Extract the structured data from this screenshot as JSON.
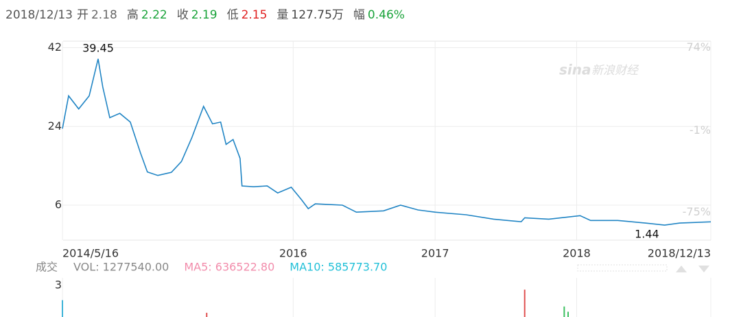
{
  "header": {
    "date": "2018/12/13",
    "items": [
      {
        "label": "开",
        "value": "2.18",
        "color": "#666666"
      },
      {
        "label": "高",
        "value": "2.22",
        "color": "#1aa33a"
      },
      {
        "label": "收",
        "value": "2.19",
        "color": "#1aa33a"
      },
      {
        "label": "低",
        "value": "2.15",
        "color": "#e02020"
      },
      {
        "label": "量",
        "value": "127.75万",
        "color": "#444444"
      },
      {
        "label": "幅",
        "value": "0.46%",
        "color": "#1aa33a"
      }
    ]
  },
  "watermark": {
    "logo": "sina",
    "text": "新浪财经"
  },
  "chart_data": [
    {
      "type": "line",
      "x": [
        "2014-05-16",
        "2014-06-01",
        "2014-06-27",
        "2014-07-24",
        "2014-08-16",
        "2014-08-28",
        "2014-09-15",
        "2014-10-11",
        "2014-11-07",
        "2014-12-03",
        "2014-12-21",
        "2015-01-17",
        "2015-02-21",
        "2015-03-19",
        "2015-04-15",
        "2015-05-15",
        "2015-06-07",
        "2015-06-28",
        "2015-07-12",
        "2015-07-30",
        "2015-08-17",
        "2015-08-22",
        "2015-09-21",
        "2015-10-26",
        "2015-11-22",
        "2015-12-27",
        "2016-01-23",
        "2016-02-09",
        "2016-02-27",
        "2016-05-07",
        "2016-06-12",
        "2016-08-21",
        "2016-10-04",
        "2016-11-18",
        "2017-01-01",
        "2017-03-22",
        "2017-06-01",
        "2017-08-11",
        "2017-08-20",
        "2017-10-21",
        "2018-01-10",
        "2018-02-06",
        "2018-04-17",
        "2018-06-27",
        "2018-08-16",
        "2018-09-24",
        "2018-12-13"
      ],
      "series": [
        {
          "name": "close",
          "color": "#1f84c4",
          "values": [
            23.5,
            31,
            28,
            31,
            39.45,
            33,
            26,
            27,
            25,
            18,
            13.6,
            12.8,
            13.5,
            16,
            21.5,
            28.6,
            24.6,
            25,
            19.9,
            21,
            16.7,
            10.4,
            10.2,
            10.4,
            8.8,
            10.1,
            7.2,
            5.2,
            6.3,
            6.0,
            4.4,
            4.7,
            6.0,
            4.9,
            4.4,
            3.8,
            2.8,
            2.2,
            3.1,
            2.8,
            3.6,
            2.5,
            2.5,
            1.9,
            1.44,
            1.9,
            2.19
          ]
        }
      ],
      "xlim": [
        "2014-05-16",
        "2018-12-13"
      ],
      "xticks": [
        {
          "value": "2014-05-16",
          "label": "2014/5/16"
        },
        {
          "value": "2016-01-01",
          "label": "2016"
        },
        {
          "value": "2017-01-01",
          "label": "2017"
        },
        {
          "value": "2018-01-01",
          "label": "2018"
        },
        {
          "value": "2018-12-13",
          "label": "2018/12/13"
        }
      ],
      "ylim": [
        -2,
        43.5
      ],
      "yticks": [
        42,
        24,
        6
      ],
      "y2lim": [
        -100,
        80
      ],
      "y2ticks": [
        {
          "value": 74,
          "label": "74%"
        },
        {
          "value": -1,
          "label": "-1%"
        },
        {
          "value": -75,
          "label": "-75%"
        }
      ],
      "grid": true
    },
    {
      "type": "bar",
      "title": "成交",
      "indicators": [
        {
          "text": "VOL: 1277540.00",
          "color": "#888888"
        },
        {
          "text": "MA5: 636522.80",
          "color": "#f28cab"
        },
        {
          "text": "MA10: 585773.70",
          "color": "#22c0d8"
        }
      ],
      "x": [
        "2014-05-16",
        "2015-05-23",
        "2017-08-20",
        "2017-11-30",
        "2017-12-10"
      ],
      "values": [
        1.6,
        0.4,
        2.6,
        1.0,
        0.5
      ],
      "colors": [
        "#3fb4d8",
        "#e05050",
        "#e05050",
        "#3cc060",
        "#3cc060"
      ],
      "ylim": [
        0,
        3
      ],
      "yticks": [
        3
      ]
    }
  ]
}
